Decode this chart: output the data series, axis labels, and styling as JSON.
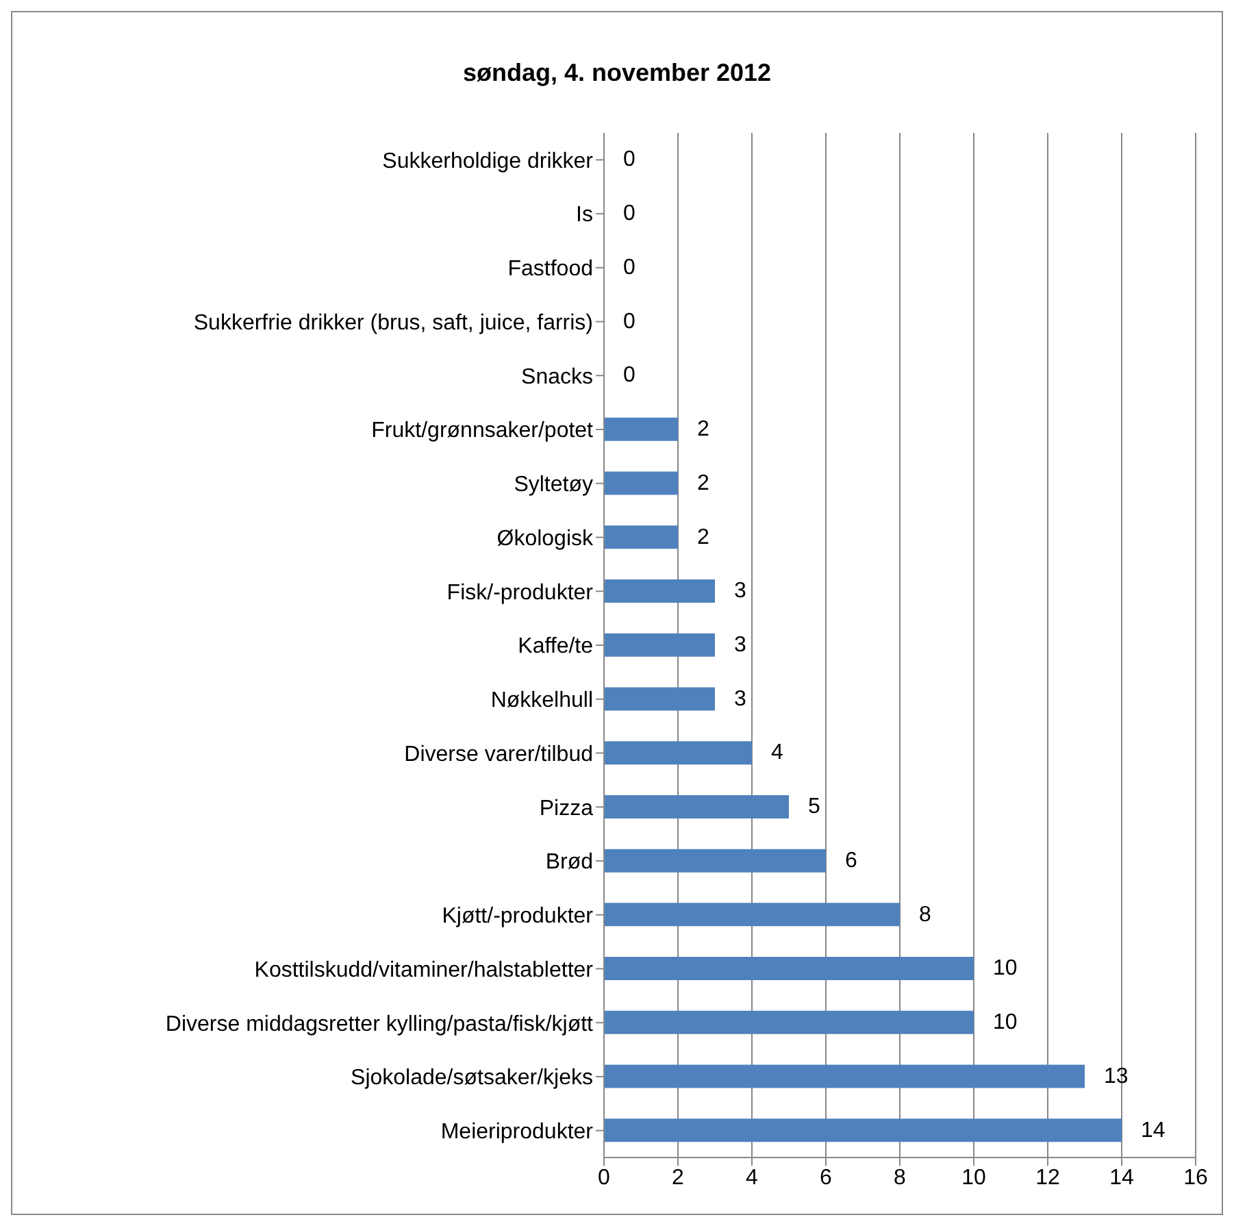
{
  "chart_data": {
    "type": "bar",
    "orientation": "horizontal",
    "title": "søndag,  4. november 2012",
    "categories": [
      "Sukkerholdige drikker",
      "Is",
      "Fastfood",
      "Sukkerfrie drikker (brus, saft, juice, farris)",
      "Snacks",
      "Frukt/grønnsaker/potet",
      "Syltetøy",
      "Økologisk",
      "Fisk/-produkter",
      "Kaffe/te",
      "Nøkkelhull",
      "Diverse varer/tilbud",
      "Pizza",
      "Brød",
      "Kjøtt/-produkter",
      "Kosttilskudd/vitaminer/halstabletter",
      "Diverse middagsretter kylling/pasta/fisk/kjøtt",
      "Sjokolade/søtsaker/kjeks",
      "Meieriprodukter"
    ],
    "values": [
      0,
      0,
      0,
      0,
      0,
      2,
      2,
      2,
      3,
      3,
      3,
      4,
      5,
      6,
      8,
      10,
      10,
      13,
      14
    ],
    "color": "#4f81bd",
    "xlim": [
      0,
      16
    ],
    "xticks": [
      0,
      2,
      4,
      6,
      8,
      10,
      12,
      14,
      16
    ],
    "grid": "x",
    "data_labels": true
  }
}
